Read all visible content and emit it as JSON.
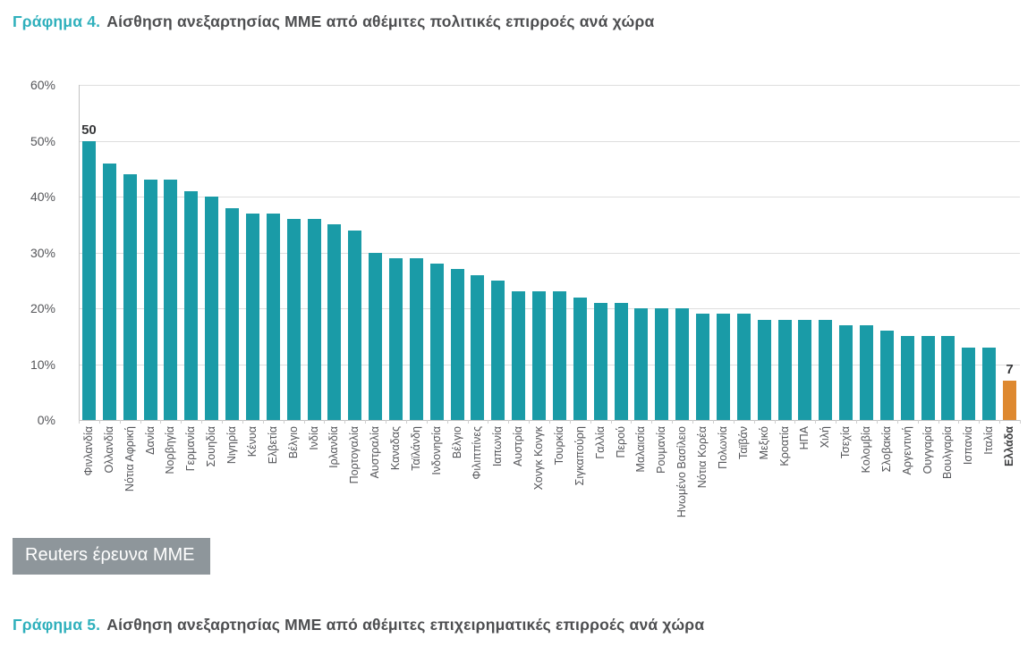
{
  "header": {
    "chart4_label": "Γράφημα 4.",
    "chart4_title": "Αίσθηση ανεξαρτησίας ΜΜΕ από αθέμιτες πολιτικές επιρροές ανά χώρα",
    "chart5_label": "Γράφημα 5.",
    "chart5_title": "Αίσθηση ανεξαρτησίας ΜΜΕ από αθέμιτες επιχειρηματικές επιρροές ανά χώρα"
  },
  "source_box": {
    "text": "Reuters έρευνα ΜΜΕ",
    "background": "#8e969b",
    "text_color": "#ffffff"
  },
  "colors": {
    "bar": "#1a9ba7",
    "highlight_bar": "#de8930",
    "accent": "#2fb0bc",
    "heading_text": "#4d4e50",
    "axis_text": "#55565a",
    "gridline": "#dedede"
  },
  "chart_data": {
    "type": "bar",
    "title": "Γράφημα 4. Αίσθηση ανεξαρτησίας ΜΜΕ από αθέμιτες πολιτικές επιρροές ανά χώρα",
    "xlabel": "",
    "ylabel": "",
    "ylim": [
      0,
      60
    ],
    "ytick_step": 10,
    "ytick_labels": [
      "0%",
      "10%",
      "20%",
      "30%",
      "40%",
      "50%",
      "60%"
    ],
    "grid": true,
    "legend": false,
    "categories": [
      "Φινλανδία",
      "Ολλανδία",
      "Νότια Αφρική",
      "Δανία",
      "Νορβηγία",
      "Γερμανία",
      "Σουηδία",
      "Νιγηρία",
      "Κένυα",
      "Ελβετία",
      "Βέλγιο",
      "Ινδία",
      "Ιρλανδία",
      "Πορτογαλία",
      "Αυστραλία",
      "Καναδας",
      "Ταϊλάνδη",
      "Ινδονησία",
      "Βέλγιο",
      "Φιλιππίνες",
      "Ιαπωνία",
      "Αυστρία",
      "Χονγκ Κονγκ",
      "Τουρκία",
      "Σιγκαπούρη",
      "Γαλλία",
      "Περού",
      "Μαλαισία",
      "Ρουμανία",
      "Ηνωμένο Βασίλειο",
      "Νότια Κορέα",
      "Πολωνία",
      "Ταϊβάν",
      "Μεξικό",
      "Κροατία",
      "ΗΠΑ",
      "Χιλή",
      "Τσεχία",
      "Κολομβία",
      "Σλοβακία",
      "Αργεντινή",
      "Ουγγαρία",
      "Βουλγαρία",
      "Ισπανία",
      "Ιταλία",
      "Ελλάδα"
    ],
    "values": [
      50,
      46,
      44,
      43,
      43,
      41,
      40,
      38,
      37,
      37,
      36,
      36,
      35,
      34,
      30,
      29,
      29,
      28,
      27,
      26,
      25,
      23,
      23,
      23,
      22,
      21,
      21,
      20,
      20,
      20,
      19,
      19,
      19,
      18,
      18,
      18,
      18,
      17,
      17,
      16,
      15,
      15,
      15,
      13,
      13,
      7
    ],
    "highlight_index": 45,
    "annotations": [
      {
        "index": 0,
        "text": "50"
      },
      {
        "index": 45,
        "text": "7"
      }
    ]
  }
}
